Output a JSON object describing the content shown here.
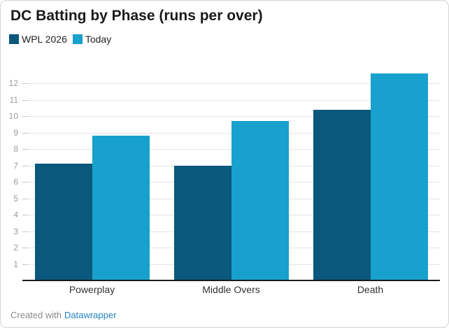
{
  "header": {
    "title": "DC Batting by Phase (runs per over)"
  },
  "legend": {
    "items": [
      {
        "label": "WPL 2026",
        "color": "#0a587c"
      },
      {
        "label": "Today",
        "color": "#18a1cd"
      }
    ]
  },
  "chart_data": {
    "type": "bar",
    "title": "DC Batting by Phase (runs per over)",
    "categories": [
      "Powerplay",
      "Middle Overs",
      "Death"
    ],
    "series": [
      {
        "name": "WPL 2026",
        "color": "#0a587c",
        "values": [
          7.1,
          7.0,
          10.4
        ]
      },
      {
        "name": "Today",
        "color": "#18a1cd",
        "values": [
          8.8,
          9.7,
          12.6
        ]
      }
    ],
    "ylabel": "",
    "xlabel": "",
    "ylim": [
      0,
      13
    ],
    "yticks": [
      1,
      2,
      3,
      4,
      5,
      6,
      7,
      8,
      9,
      10,
      11,
      12
    ],
    "grid": "horizontal",
    "legend_position": "top-left"
  },
  "footer": {
    "credit_prefix": "Created with",
    "credit_link": "Datawrapper"
  },
  "colors": {
    "grid": "#e4e4e4",
    "tick": "#c4c4c4",
    "axis_label": "#9b9b9b",
    "category_label": "#333333",
    "baseline": "#1a1a1a",
    "credit": "#8a8a8a",
    "link": "#2183c4"
  }
}
